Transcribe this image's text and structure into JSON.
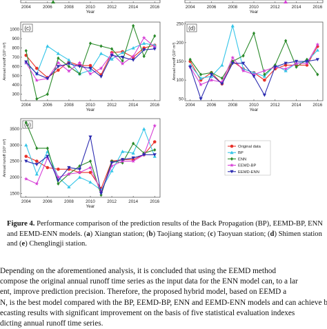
{
  "chart_data": [
    {
      "panel": "a",
      "type": "line",
      "x": [
        2004,
        2006,
        2008,
        2010,
        2012,
        2014,
        2016
      ],
      "xlabel": "Year",
      "series": []
    },
    {
      "panel": "b",
      "type": "line",
      "x": [
        2004,
        2006,
        2008,
        2010,
        2012,
        2014,
        2016
      ],
      "xlabel": "Year",
      "series": []
    },
    {
      "panel": "c",
      "type": "line",
      "ylabel": "Annual runoff (10⁸ m³)",
      "xlabel": "Year",
      "xlim": [
        2003.5,
        2016.5
      ],
      "ylim": [
        230,
        1080
      ],
      "yticks": [
        300,
        400,
        500,
        600,
        700,
        800,
        900,
        1000
      ],
      "xticks": [
        2004,
        2006,
        2008,
        2010,
        2012,
        2014,
        2016
      ],
      "x": [
        2004,
        2005,
        2006,
        2007,
        2008,
        2009,
        2010,
        2011,
        2012,
        2013,
        2014,
        2015,
        2016
      ],
      "series": [
        {
          "name": "Original data",
          "color": "#e8322b",
          "marker": "circle",
          "values": [
            720,
            580,
            480,
            560,
            650,
            610,
            610,
            510,
            750,
            760,
            700,
            800,
            830
          ]
        },
        {
          "name": "BP",
          "color": "#35c5e8",
          "marker": "triangle",
          "values": [
            640,
            520,
            820,
            740,
            670,
            520,
            560,
            740,
            680,
            750,
            800,
            850,
            830
          ]
        },
        {
          "name": "ENN",
          "color": "#2a8a2a",
          "marker": "diamond",
          "values": [
            770,
            250,
            300,
            690,
            600,
            520,
            850,
            820,
            790,
            660,
            1040,
            710,
            930
          ]
        },
        {
          "name": "EEMD-BP",
          "color": "#d63fd6",
          "marker": "star",
          "values": [
            640,
            450,
            470,
            640,
            550,
            640,
            520,
            580,
            740,
            630,
            710,
            910,
            810
          ]
        },
        {
          "name": "EEMD-ENN",
          "color": "#2b2bb0",
          "marker": "triangle-down",
          "values": [
            650,
            520,
            470,
            600,
            630,
            600,
            580,
            490,
            720,
            700,
            670,
            780,
            790
          ]
        }
      ]
    },
    {
      "panel": "d",
      "type": "line",
      "ylabel": "Annual runoff (10⁸ m³)",
      "xlabel": "Year",
      "xlim": [
        2003.5,
        2016.5
      ],
      "ylim": [
        45,
        255
      ],
      "yticks": [
        50,
        100,
        150,
        200,
        250
      ],
      "xticks": [
        2004,
        2006,
        2008,
        2010,
        2012,
        2014,
        2016
      ],
      "x": [
        2004,
        2005,
        2006,
        2007,
        2008,
        2009,
        2010,
        2011,
        2012,
        2013,
        2014,
        2015,
        2016
      ],
      "series": [
        {
          "name": "Original data",
          "color": "#e8322b",
          "marker": "circle",
          "values": [
            150,
            100,
            120,
            90,
            150,
            130,
            120,
            100,
            130,
            140,
            140,
            140,
            190
          ]
        },
        {
          "name": "BP",
          "color": "#35c5e8",
          "marker": "triangle",
          "values": [
            140,
            105,
            110,
            140,
            245,
            130,
            120,
            110,
            140,
            125,
            145,
            150,
            180
          ]
        },
        {
          "name": "ENN",
          "color": "#2a8a2a",
          "marker": "diamond",
          "values": [
            155,
            115,
            120,
            105,
            150,
            165,
            225,
            115,
            140,
            205,
            135,
            155,
            115
          ]
        },
        {
          "name": "EEMD-BP",
          "color": "#d63fd6",
          "marker": "star",
          "values": [
            135,
            88,
            100,
            95,
            160,
            125,
            115,
            125,
            135,
            130,
            145,
            145,
            195
          ]
        },
        {
          "name": "EEMD-ENN",
          "color": "#2b2bb0",
          "marker": "triangle-down",
          "values": [
            135,
            50,
            115,
            90,
            145,
            145,
            110,
            60,
            135,
            145,
            150,
            150,
            155
          ]
        }
      ]
    },
    {
      "panel": "e",
      "type": "line",
      "ylabel": "Annual runoff (10⁸ m³)",
      "xlabel": "Year",
      "xlim": [
        2003.5,
        2016.5
      ],
      "ylim": [
        1380,
        3820
      ],
      "yticks": [
        1500,
        2000,
        2500,
        3000,
        3500
      ],
      "xticks": [
        2004,
        2006,
        2008,
        2010,
        2012,
        2014,
        2016
      ],
      "x": [
        2004,
        2005,
        2006,
        2007,
        2008,
        2009,
        2010,
        2011,
        2012,
        2013,
        2014,
        2015,
        2016
      ],
      "series": [
        {
          "name": "Original data",
          "color": "#e8322b",
          "marker": "circle",
          "values": [
            2650,
            2500,
            2300,
            2250,
            2250,
            2150,
            2150,
            1650,
            2500,
            2550,
            2550,
            2700,
            3100
          ]
        },
        {
          "name": "BP",
          "color": "#35c5e8",
          "marker": "triangle",
          "values": [
            3000,
            2100,
            2800,
            2000,
            1700,
            2000,
            1850,
            1600,
            2200,
            2800,
            2750,
            3500,
            2650
          ]
        },
        {
          "name": "ENN",
          "color": "#2a8a2a",
          "marker": "diamond",
          "values": [
            3700,
            2900,
            2900,
            1800,
            2100,
            2350,
            2500,
            1450,
            2500,
            2450,
            3050,
            2750,
            2850
          ]
        },
        {
          "name": "EEMD-BP",
          "color": "#d63fd6",
          "marker": "star",
          "values": [
            1950,
            1800,
            2600,
            2000,
            2100,
            2150,
            2300,
            1550,
            2350,
            2500,
            2500,
            2700,
            3600
          ]
        },
        {
          "name": "EEMD-ENN",
          "color": "#2b2bb0",
          "marker": "triangle-down",
          "values": [
            2500,
            2400,
            2650,
            1900,
            2300,
            2250,
            3250,
            1500,
            2450,
            2550,
            2600,
            2700,
            2700
          ]
        }
      ]
    }
  ],
  "legend": [
    {
      "label": "Original data",
      "color": "#e8322b",
      "marker": "circle"
    },
    {
      "label": "BP",
      "color": "#35c5e8",
      "marker": "triangle"
    },
    {
      "label": "ENN",
      "color": "#2a8a2a",
      "marker": "diamond"
    },
    {
      "label": "EEMD-BP",
      "color": "#d63fd6",
      "marker": "star"
    },
    {
      "label": "EEMD-ENN",
      "color": "#2b2bb0",
      "marker": "triangle-down"
    }
  ],
  "caption": {
    "label": "Figure 4.",
    "text_1": " Performance comparison of the prediction results of the Back Propagation (BP), EEMD-BP, ENN and EEMD-ENN models. (",
    "a": "a",
    "text_a": ") Xiangtan station; (",
    "b": "b",
    "text_b": ") Taojiang station; (",
    "c": "c",
    "text_c": ") Taoyuan station; (",
    "d": "d",
    "text_d": ") Shimen station and (",
    "e": "e",
    "text_e": ") Chenglingji station."
  },
  "body_lines": [
    "     Depending on the aforementioned analysis, it is concluded that using the EEMD method",
    "compose the original annual runoff time series as the input data for the ENN model can, to a lar",
    "ent, improve prediction precision. Therefore, the proposed hybrid model, based on EEMD a",
    "N, is the best model compared with the BP, EEMD-BP, ENN and EEMD-ENN models and can achieve bet",
    "ecasting results with significant improvement on the basis of five statistical evaluation indexes",
    "dicting annual runoff time series."
  ]
}
